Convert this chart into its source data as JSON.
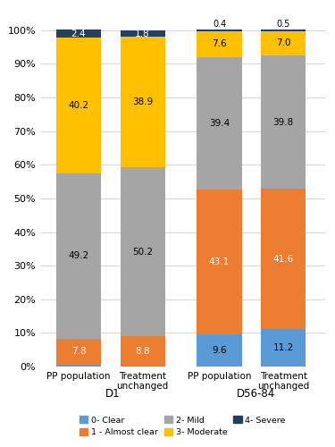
{
  "groups": [
    "PP population",
    "Treatment unchanged",
    "PP population",
    "Treatment unchanged"
  ],
  "group_labels": [
    "D1",
    "D56-84"
  ],
  "categories": [
    "0- Clear",
    "1 - Almost clear",
    "2- Mild",
    "3- Moderate",
    "4- Severe"
  ],
  "bar_colors": [
    "#5B9BD5",
    "#ED7D31",
    "#A5A5A5",
    "#FFC000",
    "#243F60"
  ],
  "values": [
    [
      0.5,
      7.8,
      49.2,
      40.2,
      2.4
    ],
    [
      0.2,
      8.8,
      50.2,
      38.9,
      1.8
    ],
    [
      9.6,
      43.1,
      39.4,
      7.6,
      0.4
    ],
    [
      11.2,
      41.6,
      39.8,
      7.0,
      0.5
    ]
  ],
  "legend_colors": [
    "#5B9BD5",
    "#ED7D31",
    "#A5A5A5",
    "#FFC000",
    "#243F60"
  ],
  "legend_labels": [
    "0- Clear",
    "1 - Almost clear",
    "2- Mild",
    "3- Moderate",
    "4- Severe"
  ],
  "ylim": [
    0,
    100
  ],
  "background_color": "#FFFFFF",
  "grid_color": "#D9D9D9",
  "label_colors": {
    "0": "black",
    "1": "white",
    "2": "black",
    "3": "black",
    "4": "white"
  }
}
